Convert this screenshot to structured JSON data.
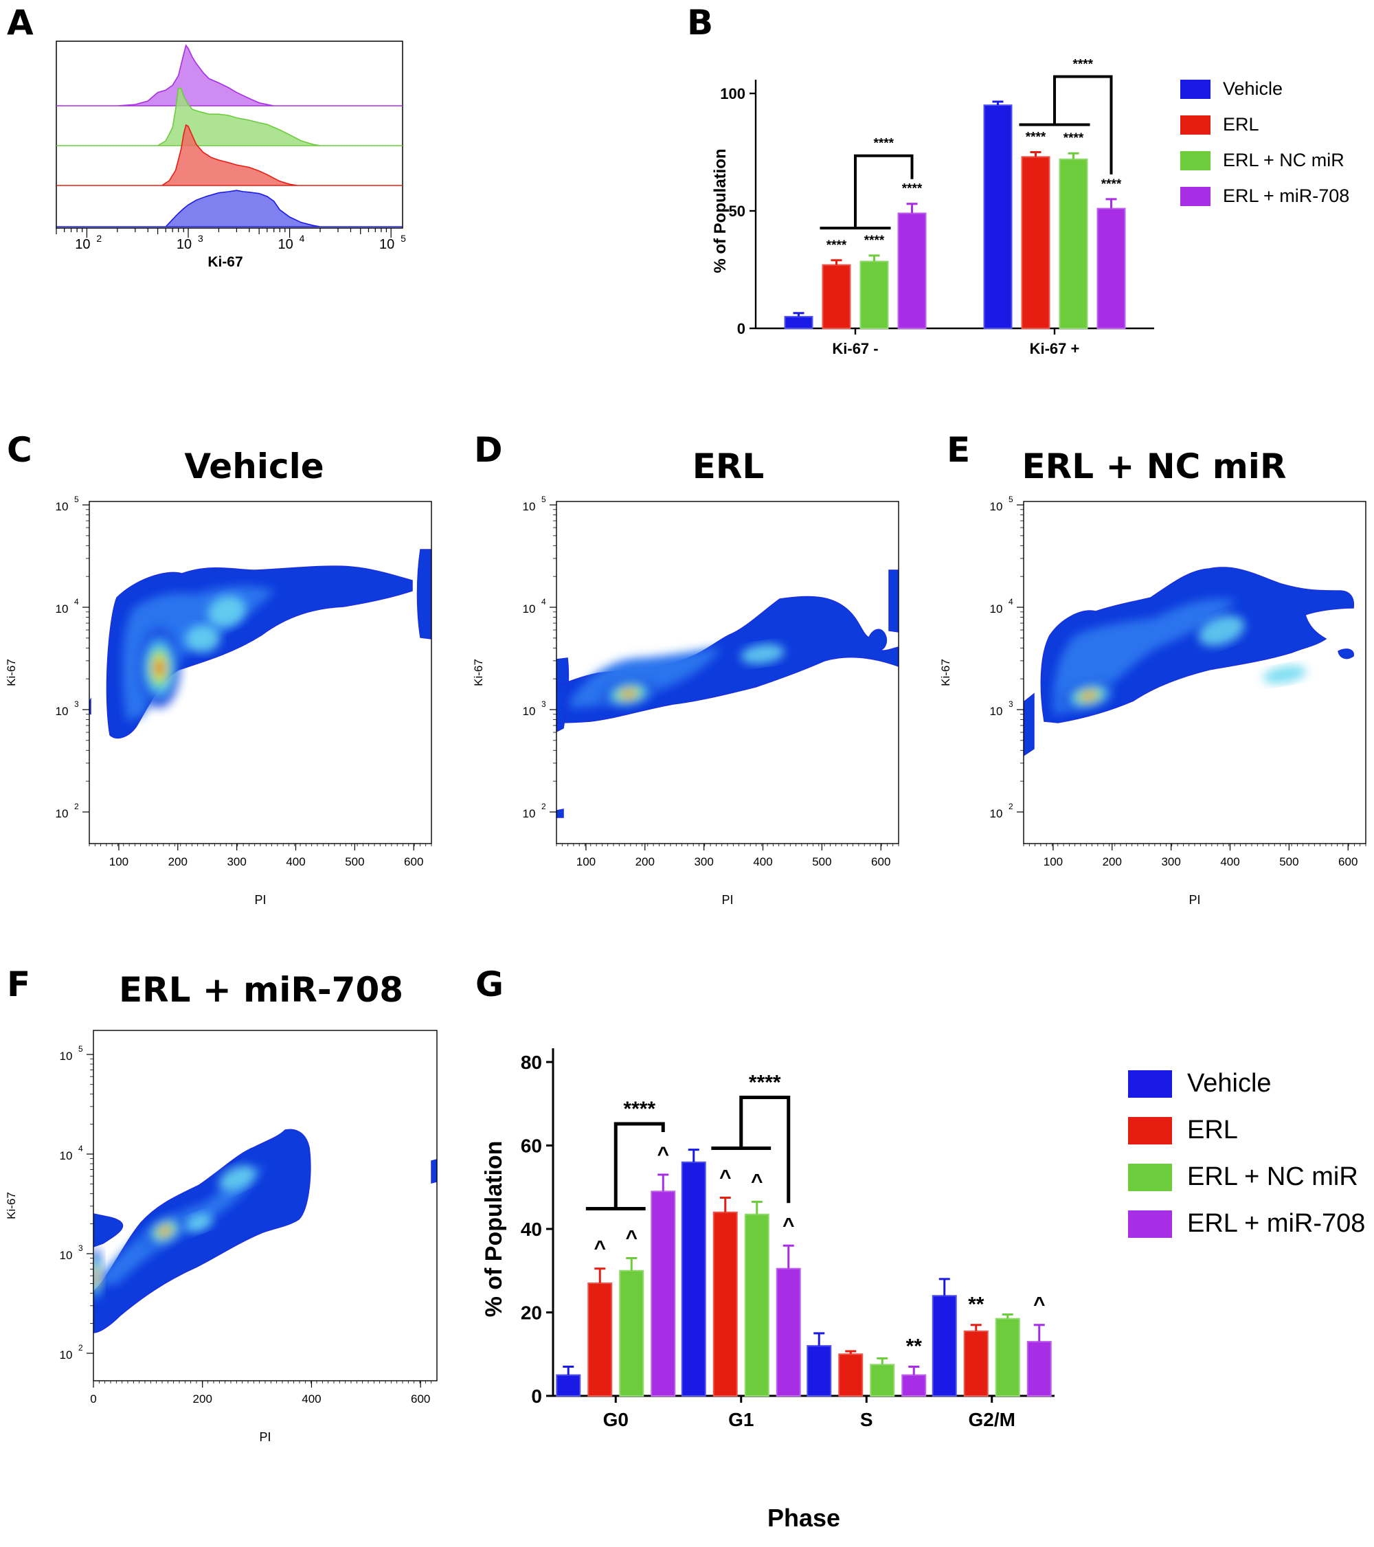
{
  "panel_letters": [
    "A",
    "B",
    "C",
    "D",
    "E",
    "F",
    "G"
  ],
  "colors": {
    "vehicle": "#1a1ae6",
    "erl": "#e61e12",
    "erl_nc": "#6ccc3c",
    "erl_mir": "#a82ee6"
  },
  "chart_data": [
    {
      "id": "A",
      "type": "area",
      "kind": "stacked-histogram",
      "xlabel": "Ki-67",
      "x_scale": "log",
      "xlim": [
        50,
        130000
      ],
      "x_ticks": [
        {
          "value": 100,
          "label": "10",
          "exp": "2"
        },
        {
          "value": 1000,
          "label": "10",
          "exp": "3"
        },
        {
          "value": 10000,
          "label": "10",
          "exp": "4"
        },
        {
          "value": 100000,
          "label": "10",
          "exp": "5"
        }
      ],
      "series": [
        {
          "color_key": "erl_mir",
          "x": [
            200,
            300,
            400,
            500,
            600,
            700,
            800,
            900,
            950,
            1000,
            1100,
            1200,
            1400,
            1600,
            2000,
            2500,
            3000,
            4000,
            5000,
            6000,
            7000
          ],
          "y": [
            0.0,
            0.02,
            0.08,
            0.22,
            0.26,
            0.34,
            0.5,
            0.85,
            1.0,
            0.95,
            0.8,
            0.7,
            0.55,
            0.45,
            0.38,
            0.3,
            0.22,
            0.12,
            0.05,
            0.02,
            0.0
          ]
        },
        {
          "color_key": "erl_nc",
          "x": [
            500,
            600,
            700,
            750,
            800,
            850,
            900,
            1000,
            1100,
            1300,
            1600,
            2000,
            2500,
            3000,
            4000,
            5000,
            6000,
            8000,
            10000,
            13000,
            17000,
            20000
          ],
          "y": [
            0.0,
            0.08,
            0.3,
            0.6,
            0.95,
            0.95,
            0.82,
            0.68,
            0.6,
            0.56,
            0.52,
            0.52,
            0.5,
            0.46,
            0.42,
            0.38,
            0.35,
            0.26,
            0.18,
            0.08,
            0.02,
            0.0
          ]
        },
        {
          "color_key": "erl",
          "x": [
            550,
            650,
            750,
            850,
            900,
            950,
            1000,
            1100,
            1200,
            1400,
            1700,
            2000,
            2500,
            3000,
            4000,
            5000,
            6000,
            7000,
            8000,
            10000,
            12000
          ],
          "y": [
            0.0,
            0.08,
            0.25,
            0.6,
            0.85,
            1.0,
            0.98,
            0.82,
            0.68,
            0.55,
            0.46,
            0.42,
            0.38,
            0.34,
            0.3,
            0.24,
            0.18,
            0.12,
            0.07,
            0.02,
            0.0
          ]
        },
        {
          "color_key": "vehicle",
          "x": [
            600,
            700,
            800,
            900,
            1000,
            1200,
            1500,
            2000,
            2500,
            3000,
            3500,
            4000,
            5000,
            6000,
            7000,
            8000,
            10000,
            13000,
            17000,
            20000
          ],
          "y": [
            0.0,
            0.12,
            0.22,
            0.3,
            0.36,
            0.44,
            0.5,
            0.56,
            0.58,
            0.6,
            0.58,
            0.57,
            0.55,
            0.5,
            0.42,
            0.28,
            0.16,
            0.07,
            0.02,
            0.0
          ]
        }
      ]
    },
    {
      "id": "B",
      "type": "bar",
      "ylabel": "% of Population",
      "ylim": [
        0,
        100
      ],
      "y_ticks": [
        0,
        50,
        100
      ],
      "categories": [
        "Ki-67 -",
        "Ki-67 +"
      ],
      "series": [
        {
          "name": "Vehicle",
          "color_key": "vehicle",
          "values": [
            5,
            95
          ],
          "errors": [
            1.5,
            1.5
          ]
        },
        {
          "name": "ERL",
          "color_key": "erl",
          "values": [
            27,
            73
          ],
          "errors": [
            2,
            2
          ]
        },
        {
          "name": "ERL + NC miR",
          "color_key": "erl_nc",
          "values": [
            28.5,
            72
          ],
          "errors": [
            2.5,
            2.5
          ]
        },
        {
          "name": "ERL + miR-708",
          "color_key": "erl_mir",
          "values": [
            49,
            51
          ],
          "errors": [
            4,
            4
          ]
        }
      ],
      "annotations": [
        {
          "text": "****",
          "category": 0,
          "series": 1
        },
        {
          "text": "****",
          "category": 0,
          "series": 2
        },
        {
          "text": "****",
          "category": 0,
          "series": 3
        },
        {
          "text": "****",
          "category": 1,
          "series": 1
        },
        {
          "text": "****",
          "category": 1,
          "series": 2
        },
        {
          "text": "****",
          "category": 1,
          "series": 3
        },
        {
          "text": "****",
          "bracket": true,
          "category": 0
        },
        {
          "text": "****",
          "bracket": true,
          "category": 1
        }
      ]
    },
    {
      "id": "C",
      "type": "heatmap",
      "kind": "density-plot",
      "title": "Vehicle",
      "xlabel": "PI",
      "ylabel": "Ki-67",
      "x_ticks": [
        100,
        200,
        300,
        400,
        500,
        600
      ],
      "y_ticks": [
        {
          "label": "10",
          "exp": "2"
        },
        {
          "label": "10",
          "exp": "3"
        },
        {
          "label": "10",
          "exp": "4"
        },
        {
          "label": "10",
          "exp": "5"
        }
      ]
    },
    {
      "id": "D",
      "type": "heatmap",
      "kind": "density-plot",
      "title": "ERL",
      "xlabel": "PI",
      "ylabel": "Ki-67",
      "x_ticks": [
        100,
        200,
        300,
        400,
        500,
        600
      ],
      "y_ticks": [
        {
          "label": "10",
          "exp": "2"
        },
        {
          "label": "10",
          "exp": "3"
        },
        {
          "label": "10",
          "exp": "4"
        },
        {
          "label": "10",
          "exp": "5"
        }
      ]
    },
    {
      "id": "E",
      "type": "heatmap",
      "kind": "density-plot",
      "title": "ERL + NC miR",
      "xlabel": "PI",
      "ylabel": "Ki-67",
      "x_ticks": [
        100,
        200,
        300,
        400,
        500,
        600
      ],
      "y_ticks": [
        {
          "label": "10",
          "exp": "2"
        },
        {
          "label": "10",
          "exp": "3"
        },
        {
          "label": "10",
          "exp": "4"
        },
        {
          "label": "10",
          "exp": "5"
        }
      ]
    },
    {
      "id": "F",
      "type": "heatmap",
      "kind": "density-plot",
      "title": "ERL + miR-708",
      "xlabel": "PI",
      "ylabel": "Ki-67",
      "x_ticks": [
        0,
        200,
        400,
        600
      ],
      "y_ticks": [
        {
          "label": "10",
          "exp": "2"
        },
        {
          "label": "10",
          "exp": "3"
        },
        {
          "label": "10",
          "exp": "4"
        },
        {
          "label": "10",
          "exp": "5"
        }
      ]
    },
    {
      "id": "G",
      "type": "bar",
      "ylabel": "% of Population",
      "xlabel": "Phase",
      "ylim": [
        0,
        80
      ],
      "y_ticks": [
        0,
        20,
        40,
        60,
        80
      ],
      "categories": [
        "G0",
        "G1",
        "S",
        "G2/M"
      ],
      "series": [
        {
          "name": "Vehicle",
          "color_key": "vehicle",
          "values": [
            5,
            56,
            12,
            24
          ],
          "errors": [
            2,
            3,
            3,
            4
          ]
        },
        {
          "name": "ERL",
          "color_key": "erl",
          "values": [
            27,
            44,
            10,
            15.5
          ],
          "errors": [
            3.5,
            3.5,
            0.7,
            1.5
          ]
        },
        {
          "name": "ERL + NC miR",
          "color_key": "erl_nc",
          "values": [
            30,
            43.5,
            7.5,
            18.5
          ],
          "errors": [
            3,
            3,
            1.5,
            1
          ]
        },
        {
          "name": "ERL + miR-708",
          "color_key": "erl_mir",
          "values": [
            49,
            30.5,
            5,
            13
          ],
          "errors": [
            4,
            5.5,
            2,
            4
          ]
        }
      ],
      "annotations": [
        {
          "text": "^",
          "category": 0,
          "series": 1
        },
        {
          "text": "^",
          "category": 0,
          "series": 2
        },
        {
          "text": "^",
          "category": 0,
          "series": 3
        },
        {
          "text": "^",
          "category": 1,
          "series": 1
        },
        {
          "text": "^",
          "category": 1,
          "series": 2
        },
        {
          "text": "^",
          "category": 1,
          "series": 3
        },
        {
          "text": "**",
          "category": 2,
          "series": 3
        },
        {
          "text": "**",
          "category": 3,
          "series": 1
        },
        {
          "text": "^",
          "category": 3,
          "series": 3
        },
        {
          "text": "****",
          "bracket": true,
          "category": 0
        },
        {
          "text": "****",
          "bracket": true,
          "category": 1
        }
      ]
    }
  ],
  "legend_entries": [
    "Vehicle",
    "ERL",
    "ERL + NC miR",
    "ERL + miR-708"
  ],
  "legend_color_keys": [
    "vehicle",
    "erl",
    "erl_nc",
    "erl_mir"
  ]
}
